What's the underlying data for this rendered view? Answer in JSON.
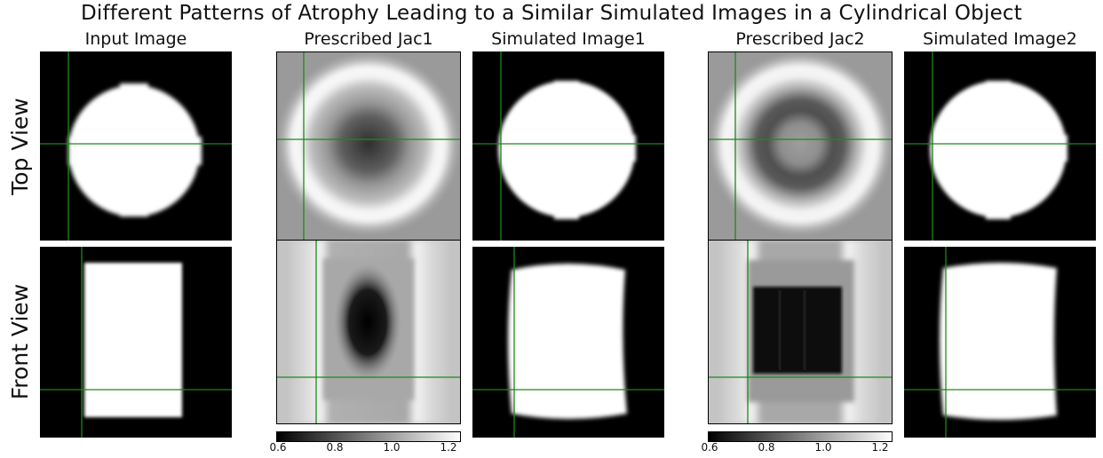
{
  "figure": {
    "title": "Different Patterns of Atrophy Leading to a Similar Simulated Images in a Cylindrical Object",
    "columns": [
      {
        "key": "input",
        "title": "Input Image"
      },
      {
        "key": "jac1",
        "title": "Prescribed Jac1"
      },
      {
        "key": "sim1",
        "title": "Simulated Image1"
      },
      {
        "key": "jac2",
        "title": "Prescribed Jac2"
      },
      {
        "key": "sim2",
        "title": "Simulated Image2"
      }
    ],
    "rows": [
      {
        "key": "top",
        "label": "Top View"
      },
      {
        "key": "front",
        "label": "Front View"
      }
    ],
    "colorbars": [
      {
        "name": "jac1-colorbar",
        "range": [
          0.6,
          1.25
        ],
        "ticks": [
          "0.6",
          "0.8",
          "1.0",
          "1.2"
        ]
      },
      {
        "name": "jac2-colorbar",
        "range": [
          0.6,
          1.25
        ],
        "ticks": [
          "0.6",
          "0.8",
          "1.0",
          "1.2"
        ]
      }
    ],
    "crosshair_color": "#1a8a1a"
  }
}
